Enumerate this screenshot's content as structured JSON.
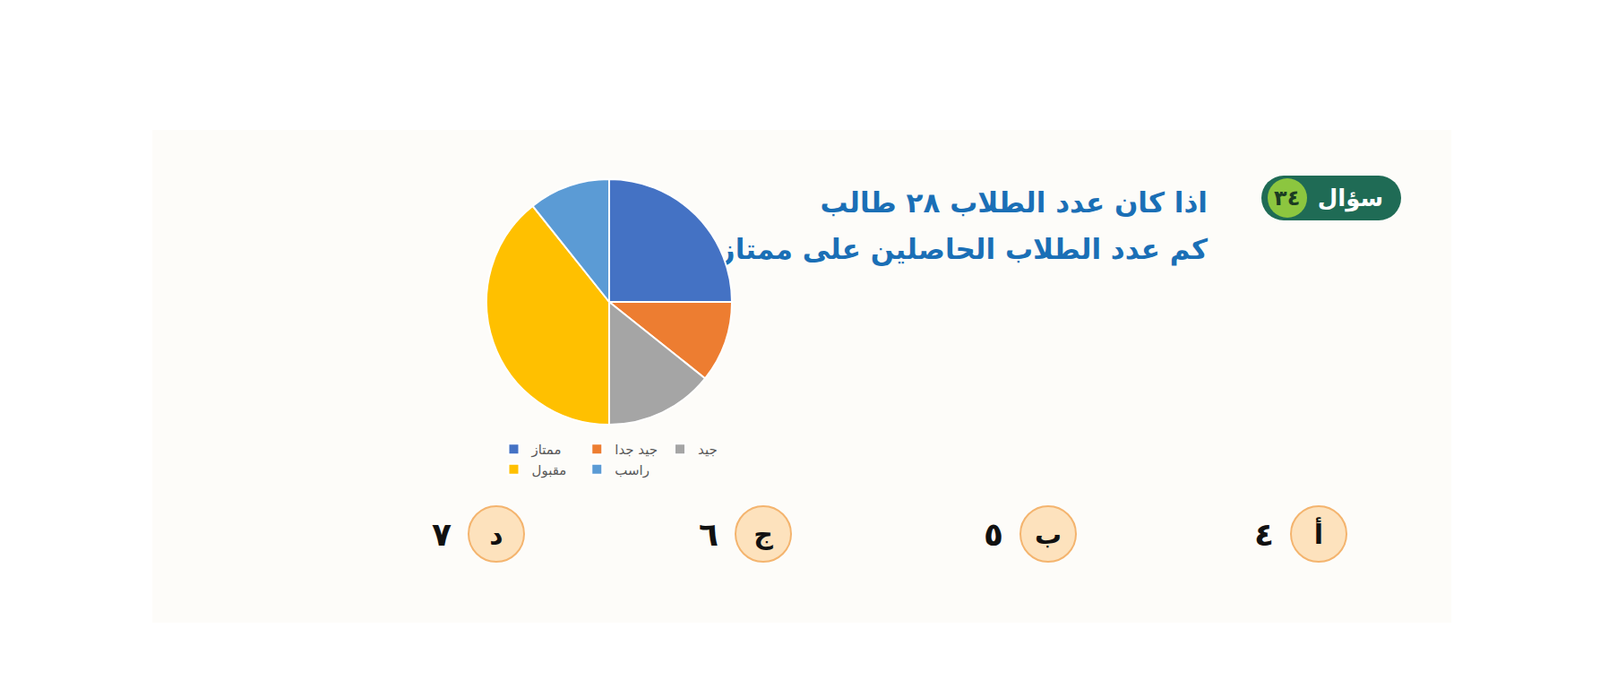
{
  "chart_data": {
    "type": "pie",
    "categories": [
      "ممتاز",
      "جيد جدا",
      "جيد",
      "مقبول",
      "راسب"
    ],
    "values": [
      7,
      3,
      4,
      11,
      3
    ],
    "colors": [
      "#4472c4",
      "#ed7d31",
      "#a5a5a5",
      "#ffc000",
      "#5b9bd5"
    ],
    "legend": "bottom"
  },
  "question": {
    "label": "سؤال",
    "number": "٣٤",
    "lines": [
      "اذا كان عدد الطلاب ٢٨ طالب",
      "كم عدد الطلاب الحاصلين على ممتاز"
    ]
  },
  "options": [
    {
      "letter": "أ",
      "text": "٤"
    },
    {
      "letter": "ب",
      "text": "٥"
    },
    {
      "letter": "ج",
      "text": "٦"
    },
    {
      "letter": "د",
      "text": "٧"
    }
  ]
}
